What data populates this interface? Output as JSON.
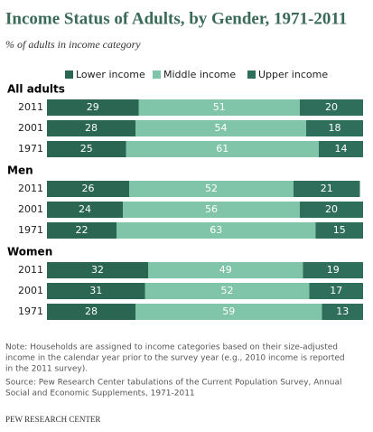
{
  "chart_data": {
    "type": "bar",
    "orientation": "horizontal",
    "stacked": true,
    "title": "Income Status of Adults, by Gender, 1971-2011",
    "subtitle": "% of adults in income category",
    "xlim": [
      0,
      100
    ],
    "legend": [
      {
        "name": "Lower income",
        "color": "#2a6652"
      },
      {
        "name": "Middle income",
        "color": "#80c4aa"
      },
      {
        "name": "Upper income",
        "color": "#2f6e5b"
      }
    ],
    "groups": [
      {
        "label": "All adults",
        "categories": [
          "2011",
          "2001",
          "1971"
        ],
        "series": [
          {
            "values": [
              29,
              28,
              25
            ]
          },
          {
            "values": [
              51,
              54,
              61
            ]
          },
          {
            "values": [
              20,
              18,
              14
            ]
          }
        ]
      },
      {
        "label": "Men",
        "categories": [
          "2011",
          "2001",
          "1971"
        ],
        "series": [
          {
            "values": [
              26,
              24,
              22
            ]
          },
          {
            "values": [
              52,
              56,
              63
            ]
          },
          {
            "values": [
              21,
              20,
              15
            ]
          }
        ]
      },
      {
        "label": "Women",
        "categories": [
          "2011",
          "2001",
          "1971"
        ],
        "series": [
          {
            "values": [
              32,
              31,
              28
            ]
          },
          {
            "values": [
              49,
              52,
              59
            ]
          },
          {
            "values": [
              19,
              17,
              13
            ]
          }
        ]
      }
    ],
    "note": [
      "Note: Households are assigned to income categories based on their size-adjusted",
      "income in the calendar year prior to the survey year (e.g., 2010 income is reported",
      "in the 2011 survey)."
    ],
    "source": [
      "Source: Pew Research Center tabulations of the Current Population Survey, Annual",
      "Social and Economic Supplements, 1971-2011"
    ],
    "credit": "PEW RESEARCH CENTER"
  }
}
